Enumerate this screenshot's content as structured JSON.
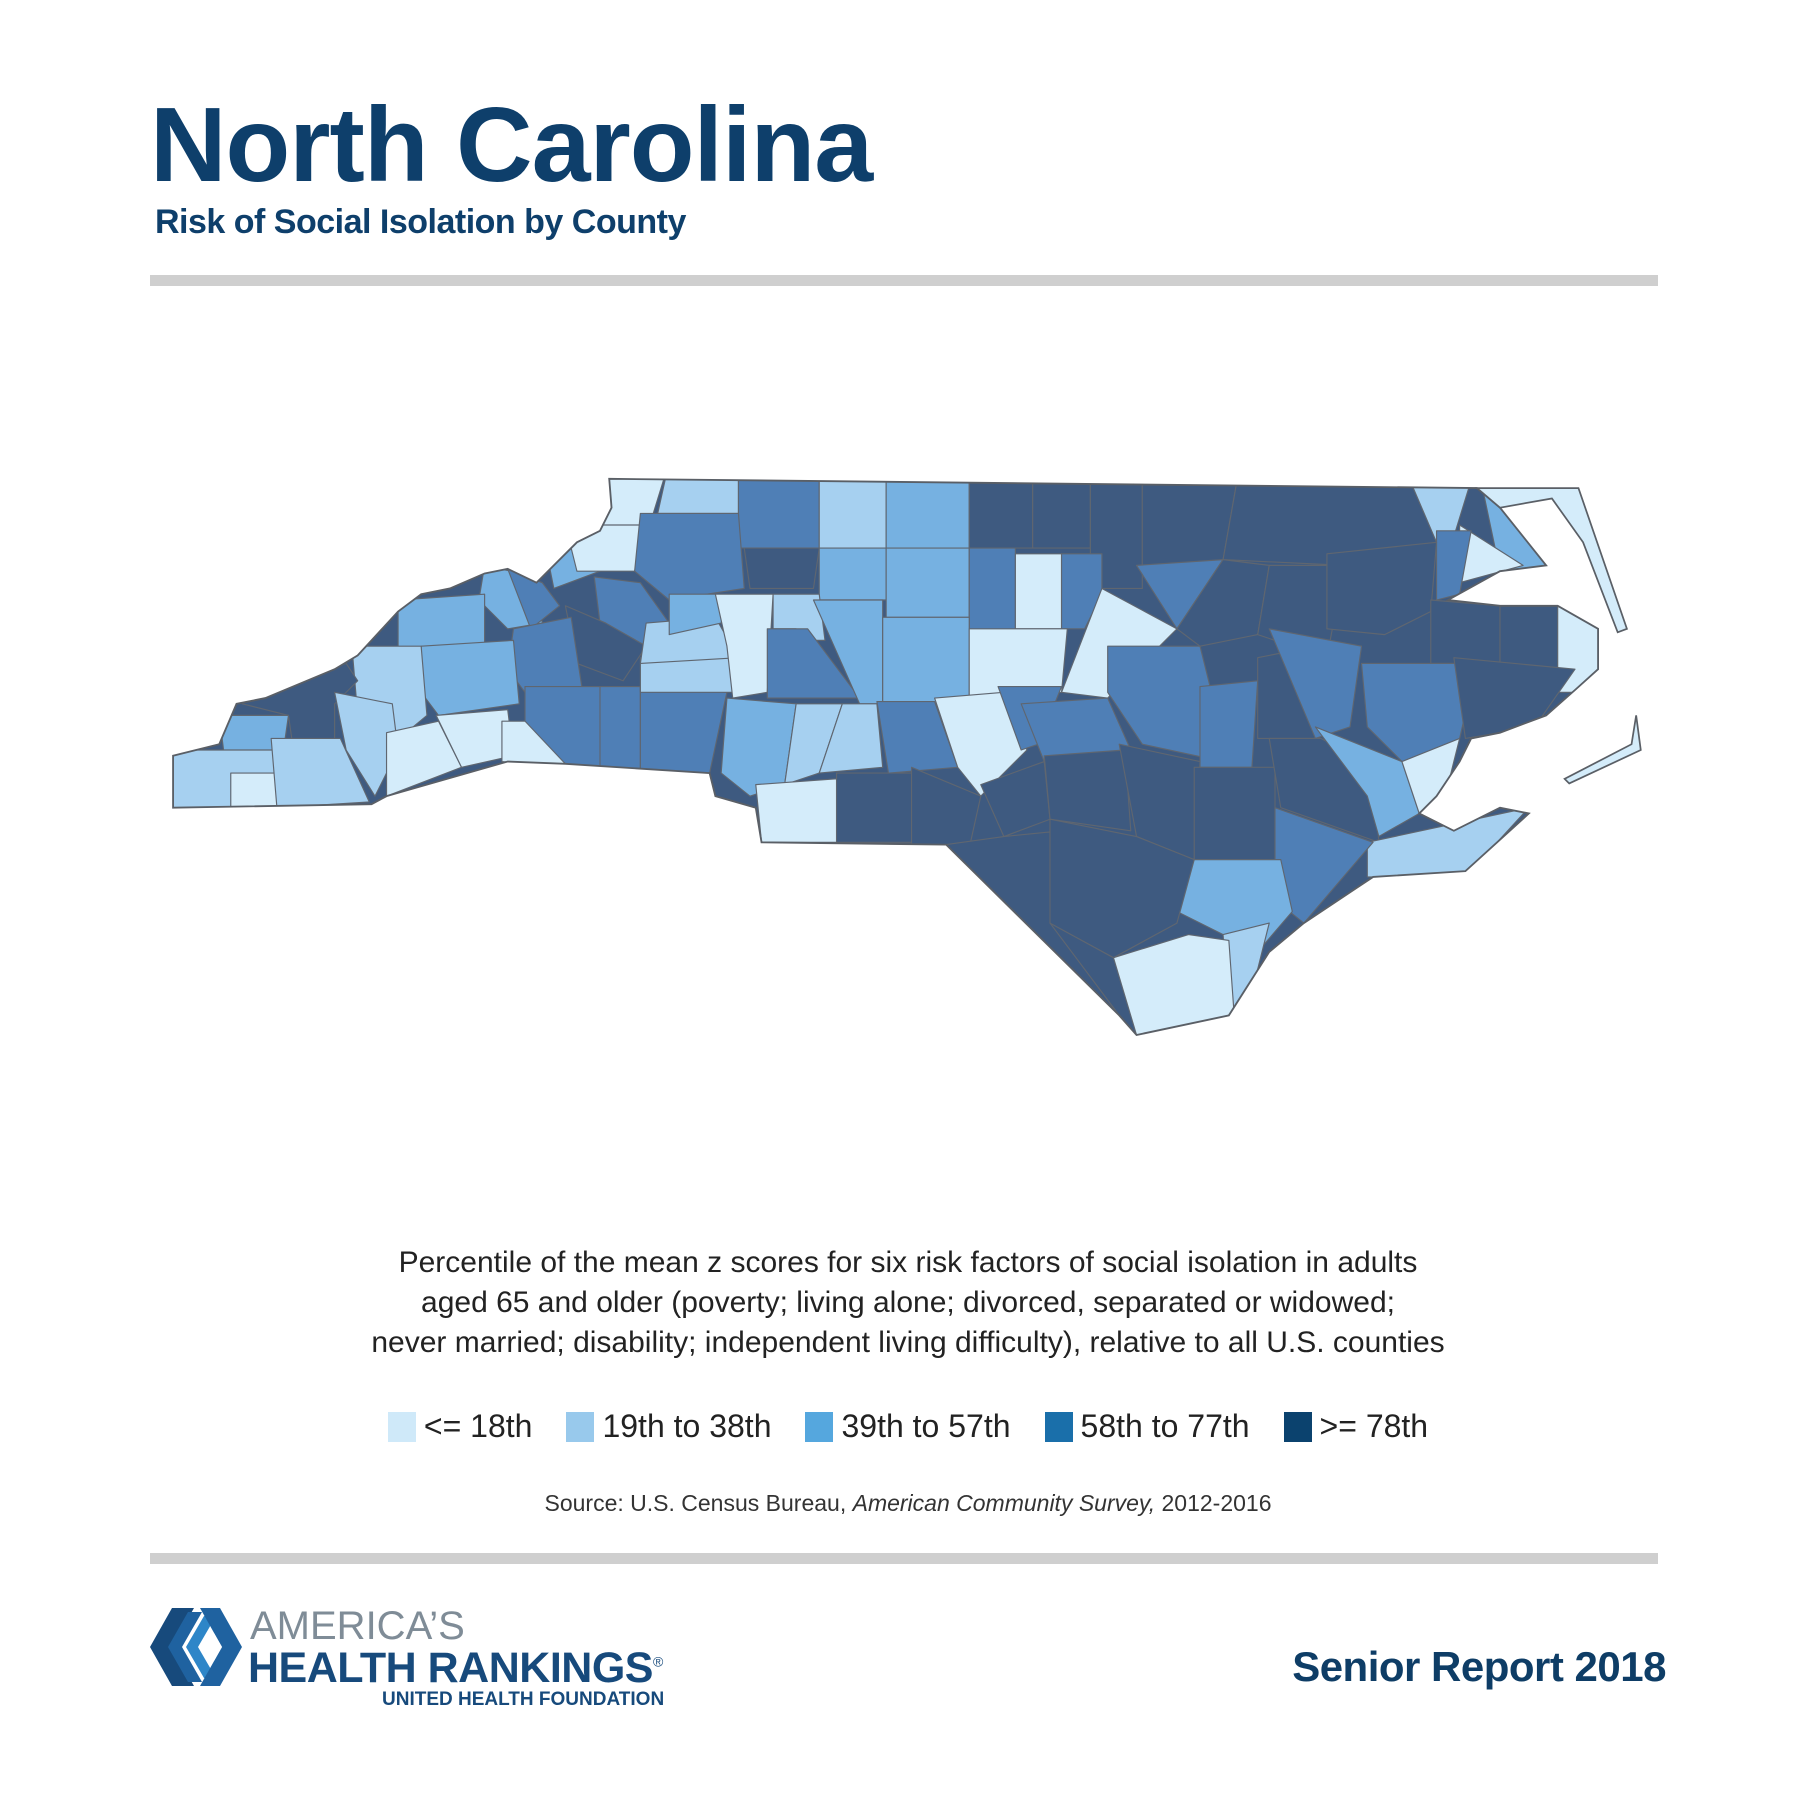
{
  "header": {
    "title": "North Carolina",
    "subtitle": "Risk of Social Isolation by County"
  },
  "description": {
    "lines": [
      "Percentile of the mean z scores for six risk factors of social isolation in adults",
      "aged 65 and older (poverty; living alone; divorced, separated or widowed;",
      "never married; disability; independent living difficulty), relative to all U.S. counties"
    ]
  },
  "source": {
    "prefix": "Source: U.S. Census Bureau, ",
    "italic": "American Community Survey,",
    "suffix": " 2012-2016"
  },
  "chart_data": {
    "type": "choropleth",
    "title": "Risk of Social Isolation by County",
    "region": "North Carolina",
    "legend": [
      {
        "label": "<= 18th",
        "color": "#cfe9f9"
      },
      {
        "label": "19th to 38th",
        "color": "#98c9ec"
      },
      {
        "label": "39th to 57th",
        "color": "#55a7de"
      },
      {
        "label": "58th to 77th",
        "color": "#1a6faa"
      },
      {
        "label": ">= 78th",
        "color": "#0b426e"
      }
    ],
    "map_colors": [
      "#d4ecfa",
      "#a6d0f0",
      "#76b1e1",
      "#4f7fb6",
      "#3e5a80"
    ]
  },
  "footer": {
    "logo_line1": "AMERICA’S",
    "logo_line2": "HEALTH RANKINGS",
    "logo_reg": "®",
    "logo_line3": "UNITED HEALTH FOUNDATION",
    "report": "Senior Report 2018"
  }
}
